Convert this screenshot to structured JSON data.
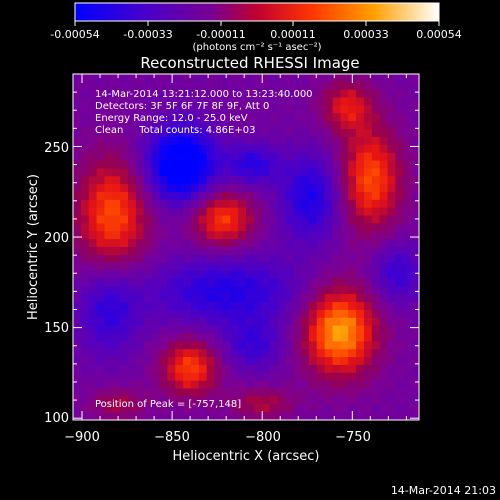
{
  "colorbar": {
    "ticks": [
      "-0.00054",
      "-0.00033",
      "-0.00011",
      "0.00011",
      "0.00033",
      "0.00054"
    ],
    "unit_label": "(photons cm⁻² s⁻¹ asec⁻²)"
  },
  "title": "Reconstructed RHESSI Image",
  "annotations": {
    "time_range": "14-Mar-2014 13:21:12.000 to 13:23:40.000",
    "detectors": "Detectors: 3F 5F 6F 7F 8F 9F, Att 0",
    "energy": "Energy Range: 12.0 - 25.0 keV",
    "clean": "Clean     Total counts: 4.86E+03",
    "peak": "Position of Peak = [-757,148]"
  },
  "timestamp": "14-Mar-2014 21:03",
  "chart_data": {
    "type": "heatmap",
    "title": "Reconstructed RHESSI Image",
    "xlabel": "Heliocentric X (arcsec)",
    "ylabel": "Heliocentric Y (arcsec)",
    "xlim": [
      -905,
      -713
    ],
    "ylim": [
      99,
      290
    ],
    "xticks": [
      -900,
      -850,
      -800,
      -750
    ],
    "yticks": [
      100,
      150,
      200,
      250
    ],
    "xtick_labels": [
      "−900",
      "−850",
      "−800",
      "−750"
    ],
    "ytick_labels": [
      "100",
      "150",
      "200",
      "250"
    ],
    "color_range": [
      -0.00054,
      0.00054
    ],
    "sources": [
      {
        "x": -757,
        "y": 148,
        "amp": 0.00054,
        "sx": 14,
        "sy": 17
      },
      {
        "x": -883,
        "y": 212,
        "amp": 0.0004,
        "sx": 14,
        "sy": 22
      },
      {
        "x": -822,
        "y": 210,
        "amp": 0.00038,
        "sx": 12,
        "sy": 11
      },
      {
        "x": -740,
        "y": 232,
        "amp": 0.0004,
        "sx": 12,
        "sy": 20
      },
      {
        "x": -753,
        "y": 272,
        "amp": 0.00028,
        "sx": 10,
        "sy": 10
      },
      {
        "x": -840,
        "y": 128,
        "amp": 0.00038,
        "sx": 11,
        "sy": 11
      },
      {
        "x": -800,
        "y": 108,
        "amp": 0.0002,
        "sx": 12,
        "sy": 6
      },
      {
        "x": -880,
        "y": 108,
        "amp": 0.00018,
        "sx": 11,
        "sy": 6
      },
      {
        "x": -845,
        "y": 240,
        "amp": -0.00052,
        "sx": 14,
        "sy": 15
      },
      {
        "x": -773,
        "y": 222,
        "amp": -0.0003,
        "sx": 12,
        "sy": 17
      },
      {
        "x": -805,
        "y": 240,
        "amp": -0.00026,
        "sx": 10,
        "sy": 8
      },
      {
        "x": -820,
        "y": 170,
        "amp": -0.00028,
        "sx": 30,
        "sy": 14
      },
      {
        "x": -885,
        "y": 160,
        "amp": -0.00024,
        "sx": 12,
        "sy": 18
      },
      {
        "x": -805,
        "y": 140,
        "amp": -0.0002,
        "sx": 12,
        "sy": 10
      },
      {
        "x": -725,
        "y": 180,
        "amp": -0.00022,
        "sx": 10,
        "sy": 12
      }
    ]
  },
  "colors": {
    "colormap": [
      "#0000ff",
      "#4000c0",
      "#7000b0",
      "#c00050",
      "#ff3000",
      "#ff9a10",
      "#ffffff"
    ],
    "background": "#000000",
    "foreground": "#ffffff"
  }
}
